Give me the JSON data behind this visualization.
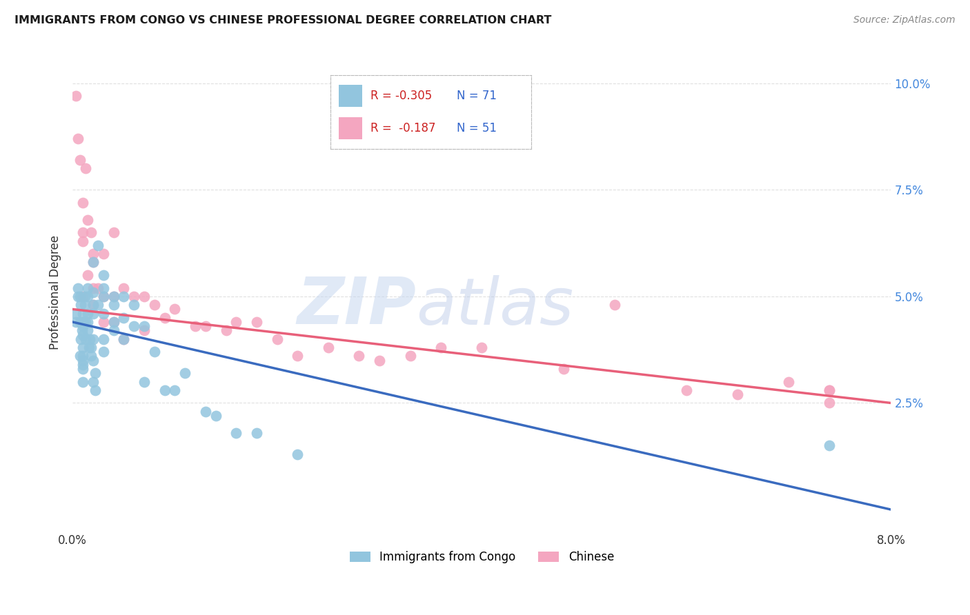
{
  "title": "IMMIGRANTS FROM CONGO VS CHINESE PROFESSIONAL DEGREE CORRELATION CHART",
  "source": "Source: ZipAtlas.com",
  "ylabel_label": "Professional Degree",
  "xlim": [
    0.0,
    0.08
  ],
  "ylim": [
    -0.005,
    0.107
  ],
  "ytick_positions": [
    0.025,
    0.05,
    0.075,
    0.1
  ],
  "ytick_labels": [
    "2.5%",
    "5.0%",
    "7.5%",
    "10.0%"
  ],
  "watermark_zip": "ZIP",
  "watermark_atlas": "atlas",
  "congo_color": "#92C5DE",
  "chinese_color": "#F4A6C0",
  "congo_line_color": "#3A6BBF",
  "chinese_line_color": "#E8607A",
  "background_color": "#ffffff",
  "grid_color": "#e0e0e0",
  "legend_R1": "-0.305",
  "legend_N1": "71",
  "legend_R2": "-0.187",
  "legend_N2": "51",
  "congo_points_x": [
    0.0003,
    0.0003,
    0.0005,
    0.0005,
    0.0007,
    0.0007,
    0.0007,
    0.0008,
    0.0008,
    0.0009,
    0.001,
    0.001,
    0.001,
    0.001,
    0.001,
    0.001,
    0.001,
    0.001,
    0.001,
    0.001,
    0.0012,
    0.0012,
    0.0013,
    0.0013,
    0.0015,
    0.0015,
    0.0015,
    0.0015,
    0.0015,
    0.0016,
    0.0017,
    0.0018,
    0.0018,
    0.002,
    0.002,
    0.002,
    0.002,
    0.002,
    0.002,
    0.002,
    0.0022,
    0.0022,
    0.0025,
    0.0025,
    0.003,
    0.003,
    0.003,
    0.003,
    0.003,
    0.003,
    0.004,
    0.004,
    0.004,
    0.004,
    0.005,
    0.005,
    0.005,
    0.006,
    0.006,
    0.007,
    0.007,
    0.008,
    0.009,
    0.01,
    0.011,
    0.013,
    0.014,
    0.016,
    0.018,
    0.022,
    0.074
  ],
  "congo_points_y": [
    0.044,
    0.046,
    0.05,
    0.052,
    0.036,
    0.044,
    0.05,
    0.04,
    0.048,
    0.042,
    0.046,
    0.044,
    0.043,
    0.041,
    0.038,
    0.036,
    0.035,
    0.034,
    0.033,
    0.03,
    0.05,
    0.048,
    0.044,
    0.04,
    0.052,
    0.05,
    0.046,
    0.044,
    0.042,
    0.038,
    0.04,
    0.038,
    0.036,
    0.058,
    0.051,
    0.048,
    0.046,
    0.04,
    0.035,
    0.03,
    0.032,
    0.028,
    0.062,
    0.048,
    0.055,
    0.052,
    0.05,
    0.046,
    0.04,
    0.037,
    0.05,
    0.048,
    0.044,
    0.042,
    0.05,
    0.045,
    0.04,
    0.048,
    0.043,
    0.043,
    0.03,
    0.037,
    0.028,
    0.028,
    0.032,
    0.023,
    0.022,
    0.018,
    0.018,
    0.013,
    0.015
  ],
  "chinese_points_x": [
    0.0003,
    0.0005,
    0.0007,
    0.001,
    0.001,
    0.001,
    0.001,
    0.0013,
    0.0015,
    0.0015,
    0.0018,
    0.002,
    0.002,
    0.002,
    0.002,
    0.0025,
    0.003,
    0.003,
    0.003,
    0.004,
    0.004,
    0.004,
    0.005,
    0.005,
    0.006,
    0.007,
    0.007,
    0.008,
    0.009,
    0.01,
    0.012,
    0.013,
    0.015,
    0.016,
    0.018,
    0.02,
    0.022,
    0.025,
    0.028,
    0.03,
    0.033,
    0.036,
    0.04,
    0.048,
    0.053,
    0.06,
    0.065,
    0.07,
    0.074,
    0.074,
    0.074
  ],
  "chinese_points_y": [
    0.097,
    0.087,
    0.082,
    0.072,
    0.065,
    0.063,
    0.05,
    0.08,
    0.068,
    0.055,
    0.065,
    0.06,
    0.058,
    0.052,
    0.048,
    0.052,
    0.06,
    0.05,
    0.044,
    0.065,
    0.05,
    0.044,
    0.052,
    0.04,
    0.05,
    0.05,
    0.042,
    0.048,
    0.045,
    0.047,
    0.043,
    0.043,
    0.042,
    0.044,
    0.044,
    0.04,
    0.036,
    0.038,
    0.036,
    0.035,
    0.036,
    0.038,
    0.038,
    0.033,
    0.048,
    0.028,
    0.027,
    0.03,
    0.025,
    0.028,
    0.028
  ]
}
